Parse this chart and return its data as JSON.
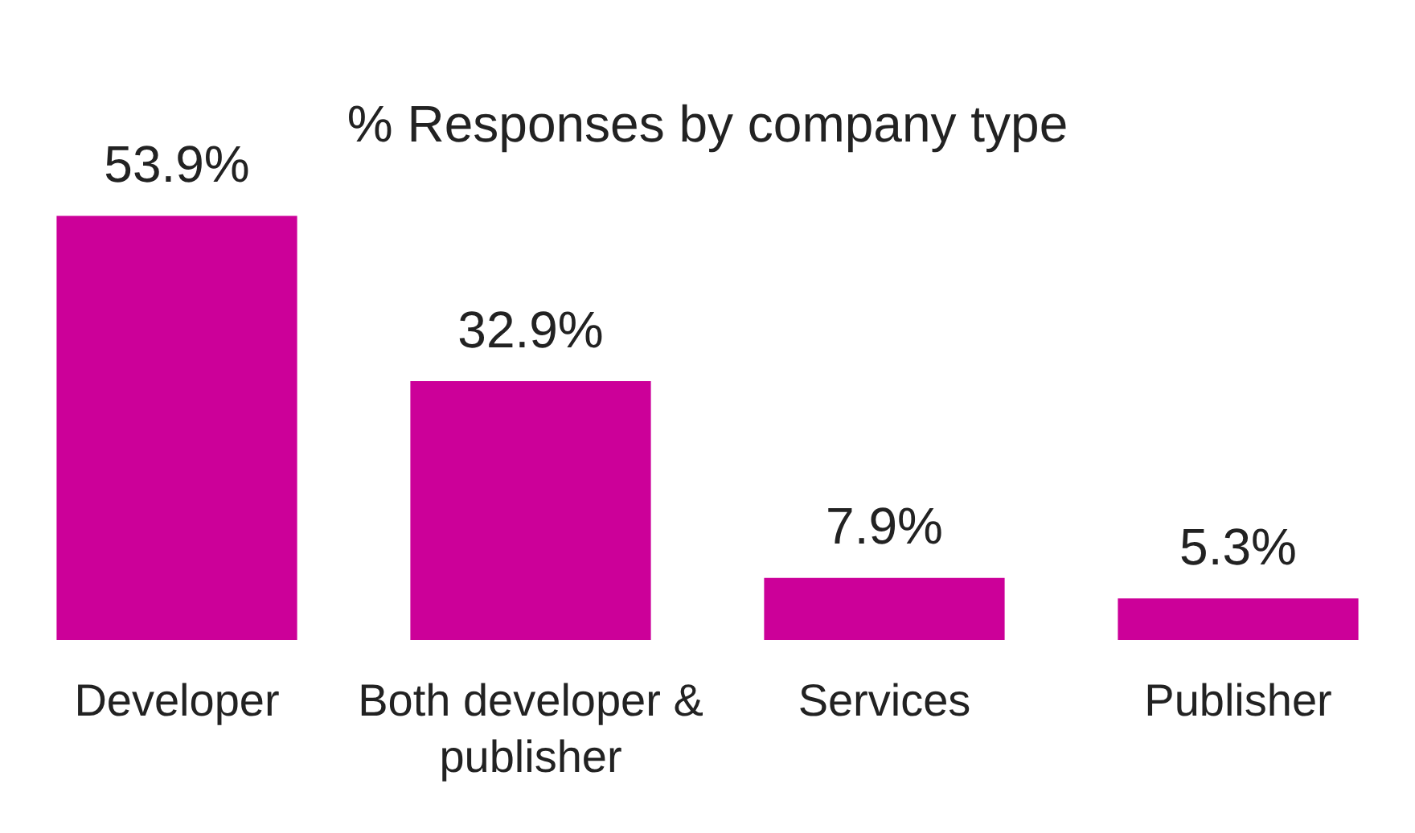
{
  "chart_data": {
    "type": "bar",
    "title": "% Responses by company type",
    "categories": [
      "Developer",
      "Both developer & publisher",
      "Services",
      "Publisher"
    ],
    "values": [
      53.9,
      32.9,
      7.9,
      5.3
    ],
    "value_labels": [
      "53.9%",
      "32.9%",
      "7.9%",
      "5.3%"
    ],
    "color": "#cc0099",
    "grid": false,
    "legend": false
  }
}
